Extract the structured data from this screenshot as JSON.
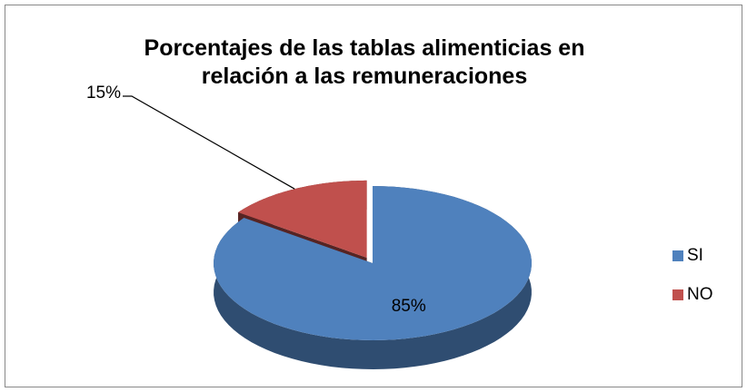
{
  "chart_data": {
    "type": "pie",
    "title": "Porcentajes de las tablas alimenticias en relación a las remuneraciones",
    "categories": [
      "SI",
      "NO"
    ],
    "values": [
      85,
      15
    ],
    "value_labels": [
      "85%",
      "15%"
    ],
    "colors": [
      "#4f81bd",
      "#c0504d"
    ],
    "legend": "right"
  }
}
